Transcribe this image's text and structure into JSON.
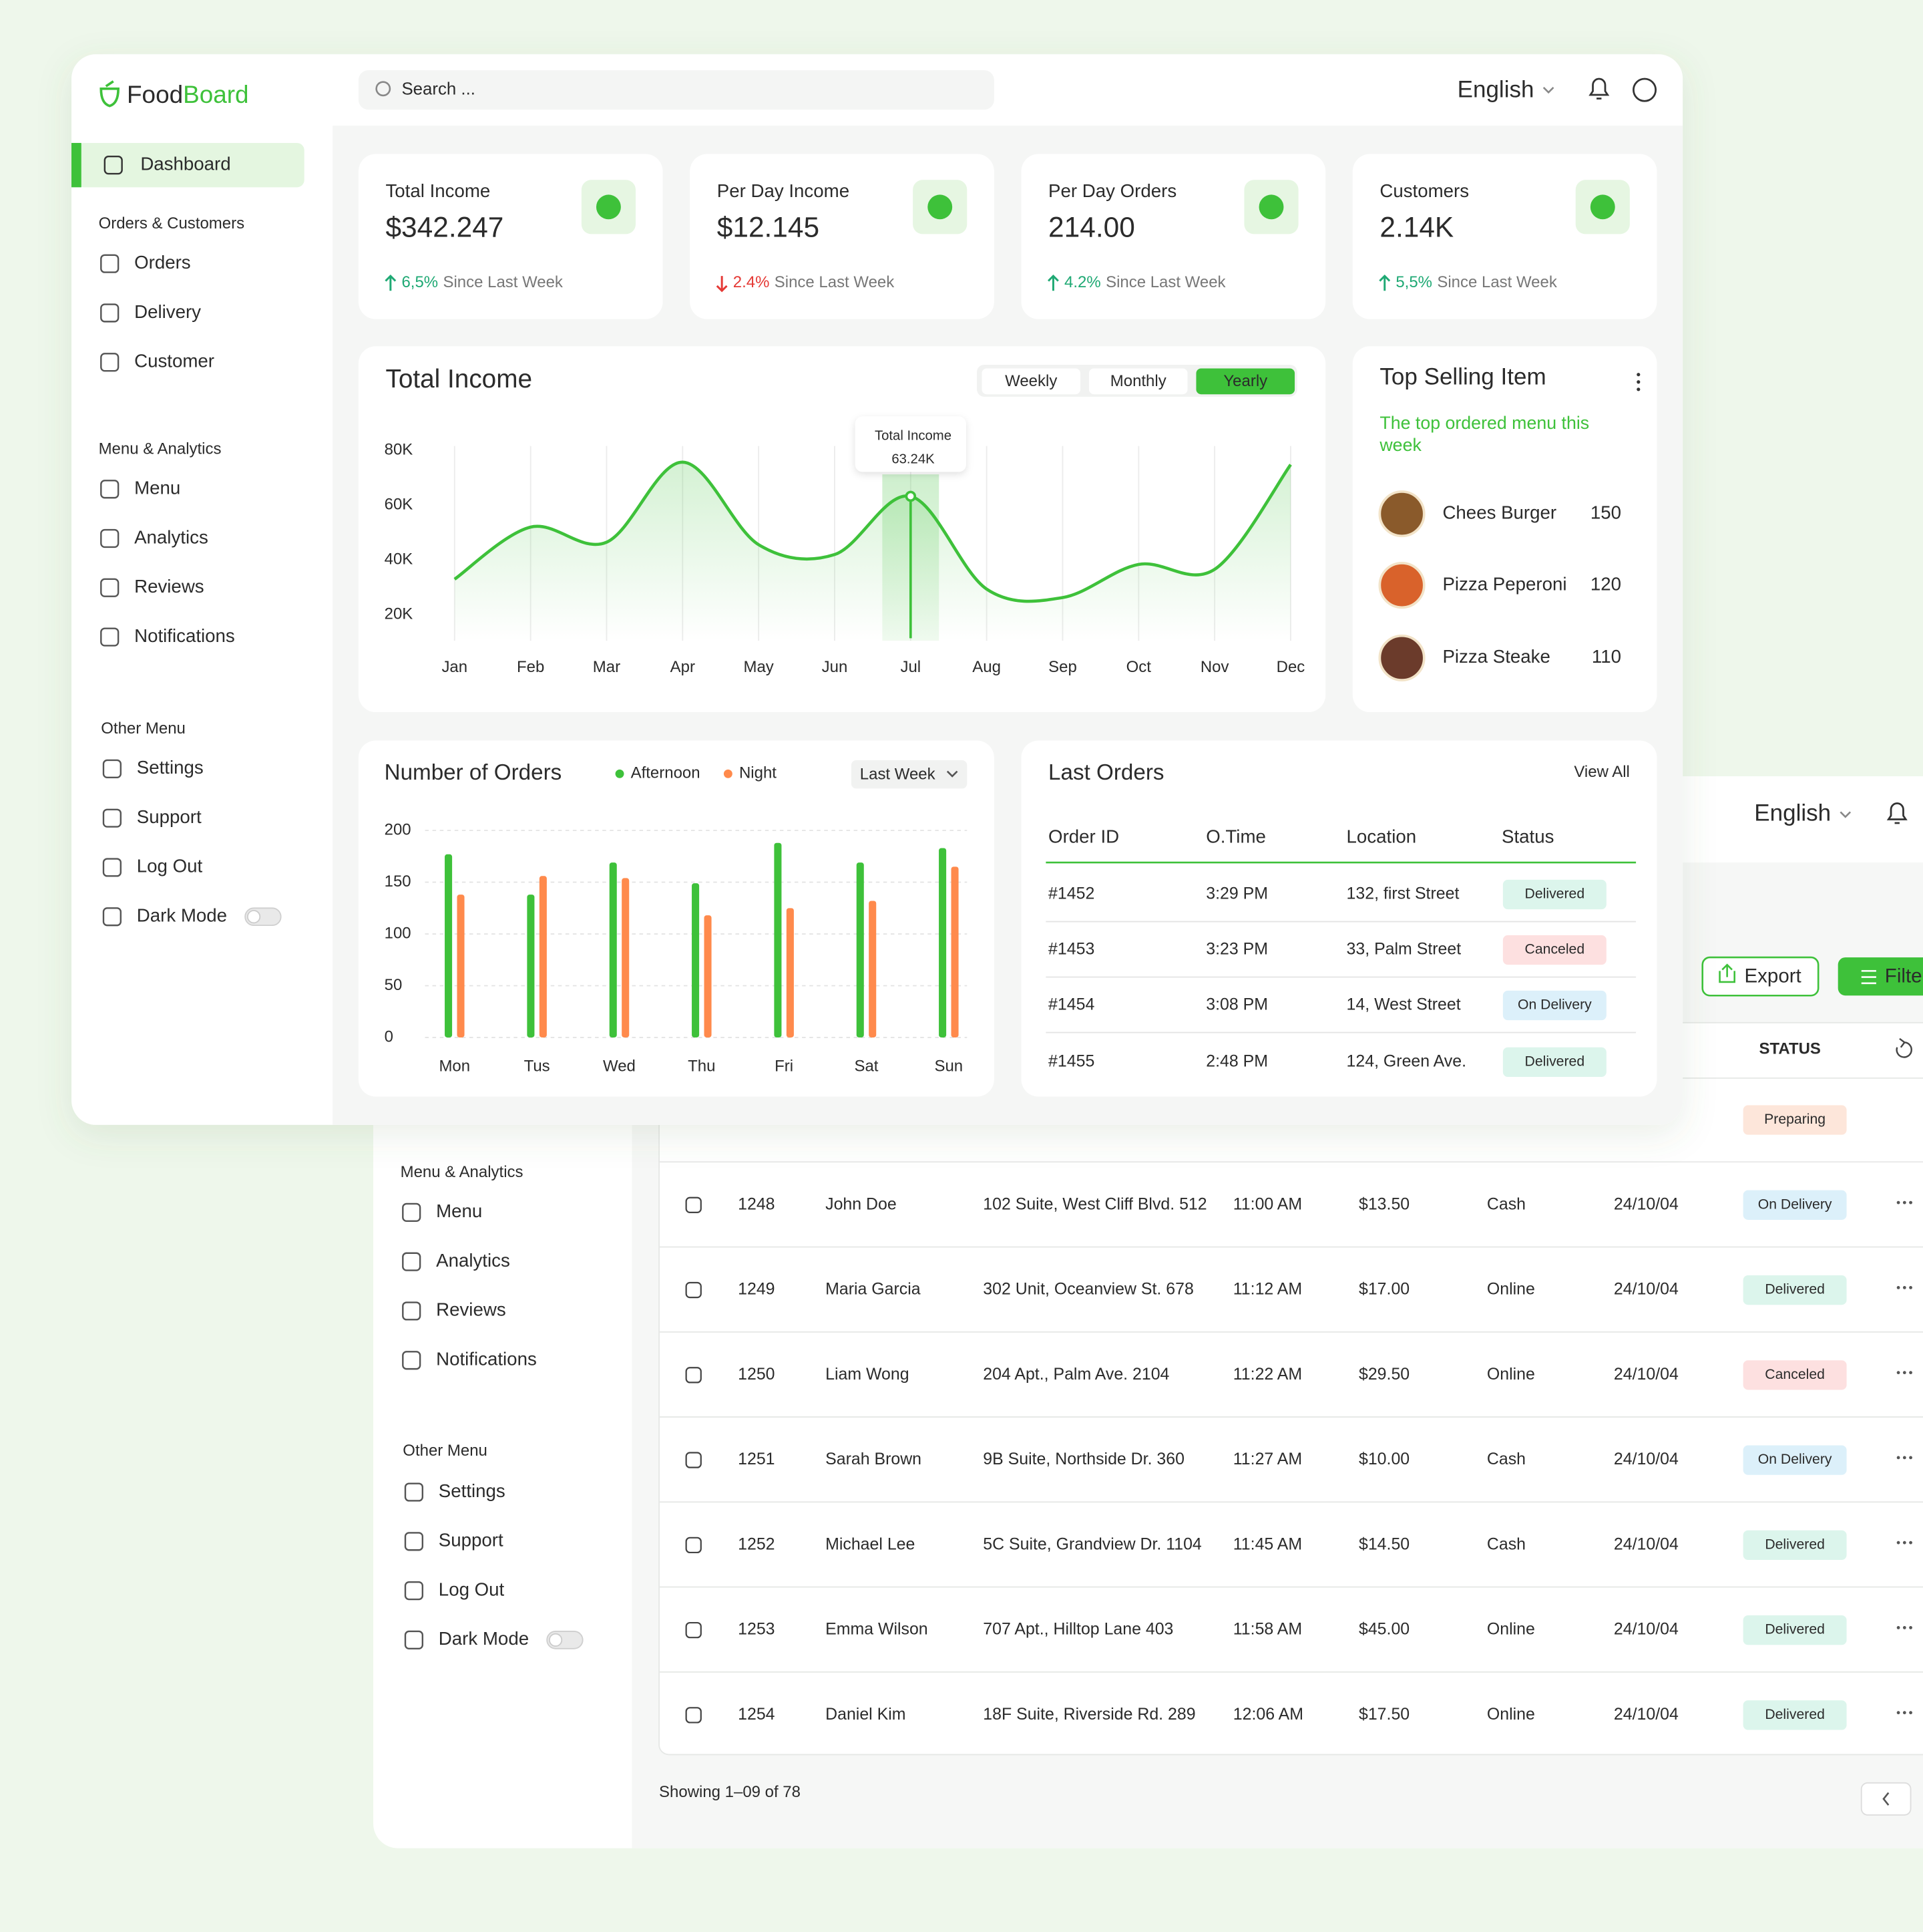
{
  "brand": {
    "name_parts": [
      "Food",
      "Board"
    ]
  },
  "search_placeholder": "Search ...",
  "language": "English",
  "sidebar": {
    "active_item": "Dashboard",
    "sections": [
      {
        "title": "Orders & Customers",
        "items": [
          "Orders",
          "Delivery",
          "Customer"
        ]
      },
      {
        "title": "Menu & Analytics",
        "items": [
          "Menu",
          "Analytics",
          "Reviews",
          "Notifications"
        ]
      },
      {
        "title": "Other Menu",
        "items": [
          "Settings",
          "Support",
          "Log Out",
          "Dark Mode"
        ]
      }
    ]
  },
  "stats": [
    {
      "label": "Total Income",
      "value": "$342.247",
      "change": "6,5%",
      "trend": "up",
      "note": "Since Last Week"
    },
    {
      "label": "Per Day Income",
      "value": "$12.145",
      "change": "2.4%",
      "trend": "down",
      "note": "Since Last Week"
    },
    {
      "label": "Per Day Orders",
      "value": "214.00",
      "change": "4.2%",
      "trend": "up",
      "note": "Since Last Week"
    },
    {
      "label": "Customers",
      "value": "2.14K",
      "change": "5,5%",
      "trend": "up",
      "note": "Since Last Week"
    }
  ],
  "income_chart": {
    "type": "line",
    "title": "Total Income",
    "tabs": [
      "Weekly",
      "Monthly",
      "Yearly"
    ],
    "active_tab": "Yearly",
    "categories": [
      "Jan",
      "Feb",
      "Mar",
      "Apr",
      "May",
      "Jun",
      "Jul",
      "Aug",
      "Sep",
      "Oct",
      "Nov",
      "Dec"
    ],
    "values": [
      33000,
      52000,
      46500,
      75700,
      45600,
      42000,
      63240,
      29400,
      26300,
      38400,
      36600,
      74800
    ],
    "color": "#3ec13a",
    "ylim": [
      10000,
      90000
    ],
    "yticks": [
      {
        "value": 20000,
        "label": "20K"
      },
      {
        "value": 40000,
        "label": "40K"
      },
      {
        "value": 60000,
        "label": "60K"
      },
      {
        "value": 80000,
        "label": "80K"
      }
    ],
    "tooltip": {
      "title": "Total Income",
      "value_label": "63.24K",
      "category": "Jul"
    }
  },
  "orders_chart": {
    "type": "bar",
    "title": "Number of Orders",
    "filter": "Last Week",
    "categories": [
      "Mon",
      "Tus",
      "Wed",
      "Thu",
      "Fri",
      "Sat",
      "Sun"
    ],
    "series": [
      {
        "name": "Afternoon",
        "color": "#3ec13a",
        "values": [
          177,
          138,
          169,
          149,
          188,
          169,
          183
        ]
      },
      {
        "name": "Night",
        "color": "#ff8a4c",
        "values": [
          138,
          156,
          154,
          118,
          125,
          132,
          165
        ]
      }
    ],
    "ylim": [
      0,
      200
    ],
    "yticks": [
      0,
      50,
      100,
      150,
      200
    ],
    "grid": true
  },
  "top_selling": {
    "title": "Top Selling Item",
    "subtitle": "The top ordered menu this week",
    "items": [
      {
        "name": "Chees Burger",
        "count": "150"
      },
      {
        "name": "Pizza Peperoni",
        "count": "120"
      },
      {
        "name": "Pizza Steake",
        "count": "110"
      }
    ]
  },
  "status_styles": {
    "Delivered": {
      "bg": "#dcf5ec",
      "fg": "#1fa974"
    },
    "Canceled": {
      "bg": "#fde0e0",
      "fg": "#e53935"
    },
    "On Delivery": {
      "bg": "#dcf0fa",
      "fg": "#1fa3dc"
    },
    "Preparing": {
      "bg": "#fde6da",
      "fg": "#f07b3f"
    }
  },
  "last_orders": {
    "title": "Last Orders",
    "link": "View All",
    "columns": [
      "Order ID",
      "O.Time",
      "Location",
      "Status"
    ],
    "rows": [
      [
        "#1452",
        "3:29 PM",
        "132, first Street",
        "Delivered"
      ],
      [
        "#1453",
        "3:23 PM",
        "33, Palm Street",
        "Canceled"
      ],
      [
        "#1454",
        "3:08 PM",
        "14, West Street",
        "On Delivery"
      ],
      [
        "#1455",
        "2:48 PM",
        "124, Green Ave.",
        "Delivered"
      ]
    ]
  },
  "orders_page": {
    "export_button": "Export",
    "filter_button": "Filter",
    "status_column": "STATUS",
    "partial_row_status": "Preparing",
    "rows": [
      [
        "1248",
        "John Doe",
        "102 Suite, West Cliff Blvd. 512",
        "11:00 AM",
        "$13.50",
        "Cash",
        "24/10/04",
        "On Delivery"
      ],
      [
        "1249",
        "Maria Garcia",
        "302 Unit, Oceanview St. 678",
        "11:12 AM",
        "$17.00",
        "Online",
        "24/10/04",
        "Delivered"
      ],
      [
        "1250",
        "Liam Wong",
        "204 Apt., Palm Ave. 2104",
        "11:22 AM",
        "$29.50",
        "Online",
        "24/10/04",
        "Canceled"
      ],
      [
        "1251",
        "Sarah Brown",
        "9B Suite, Northside Dr. 360",
        "11:27 AM",
        "$10.00",
        "Cash",
        "24/10/04",
        "On Delivery"
      ],
      [
        "1252",
        "Michael Lee",
        "5C Suite, Grandview Dr. 1104",
        "11:45 AM",
        "$14.50",
        "Cash",
        "24/10/04",
        "Delivered"
      ],
      [
        "1253",
        "Emma Wilson",
        "707 Apt., Hilltop Lane 403",
        "11:58 AM",
        "$45.00",
        "Online",
        "24/10/04",
        "Delivered"
      ],
      [
        "1254",
        "Daniel Kim",
        "18F Suite, Riverside Rd. 289",
        "12:06 AM",
        "$17.50",
        "Online",
        "24/10/04",
        "Delivered"
      ]
    ],
    "pagination": "Showing 1–09 of 78"
  }
}
